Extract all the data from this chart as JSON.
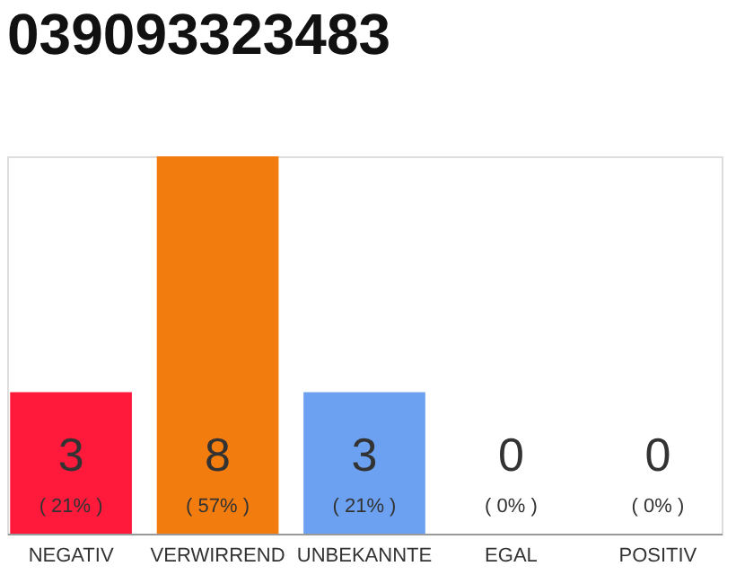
{
  "chart_data": {
    "type": "bar",
    "title": "039093323483",
    "grid": false,
    "categories": [
      "NEGATIV",
      "VERWIRREND",
      "UNBEKANNTE",
      "EGAL",
      "POSITIV"
    ],
    "series": [
      {
        "colors": [
          "#ff1a3c",
          "#f27c0e",
          "#6ca0f0",
          "#efefef",
          "#efefef"
        ],
        "values": [
          3,
          8,
          3,
          0,
          0
        ],
        "value_labels": [
          "3",
          "8",
          "3",
          "0",
          "0"
        ]
      }
    ],
    "annotations": [
      "( 21% )",
      "( 57% )",
      "( 21% )",
      "( 0% )",
      "( 0% )"
    ]
  }
}
